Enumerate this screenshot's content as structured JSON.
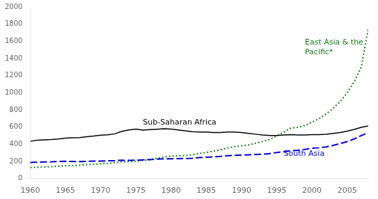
{
  "chart_data": {
    "type": "line",
    "x": [
      1960,
      1961,
      1962,
      1963,
      1964,
      1965,
      1966,
      1967,
      1968,
      1969,
      1970,
      1971,
      1972,
      1973,
      1974,
      1975,
      1976,
      1977,
      1978,
      1979,
      1980,
      1981,
      1982,
      1983,
      1984,
      1985,
      1986,
      1987,
      1988,
      1989,
      1990,
      1991,
      1992,
      1993,
      1994,
      1995,
      1996,
      1997,
      1998,
      1999,
      2000,
      2001,
      2002,
      2003,
      2004,
      2005,
      2006,
      2007,
      2008
    ],
    "series": [
      {
        "color": "#000000",
        "line_style": "solid",
        "values": [
          435,
          448,
          452,
          456,
          462,
          472,
          476,
          479,
          489,
          497,
          507,
          511,
          522,
          552,
          567,
          577,
          566,
          571,
          576,
          581,
          577,
          568,
          558,
          548,
          543,
          543,
          538,
          538,
          543,
          543,
          538,
          528,
          518,
          508,
          503,
          503,
          508,
          513,
          508,
          508,
          513,
          513,
          518,
          528,
          538,
          553,
          573,
          598,
          615
        ]
      },
      {
        "color": "#0000cc",
        "line_style": "dashed",
        "values": [
          188,
          192,
          194,
          196,
          200,
          202,
          200,
          198,
          202,
          205,
          205,
          208,
          210,
          215,
          213,
          215,
          220,
          222,
          228,
          232,
          232,
          234,
          236,
          238,
          245,
          250,
          255,
          260,
          268,
          272,
          275,
          278,
          282,
          285,
          292,
          305,
          315,
          325,
          330,
          340,
          355,
          360,
          370,
          388,
          408,
          432,
          462,
          502,
          535
        ]
      },
      {
        "color": "#1a7a1a",
        "line_style": "dotted",
        "values": [
          130,
          133,
          136,
          140,
          146,
          151,
          153,
          156,
          163,
          168,
          173,
          178,
          186,
          196,
          198,
          203,
          213,
          223,
          238,
          253,
          263,
          266,
          270,
          278,
          293,
          306,
          320,
          336,
          358,
          373,
          383,
          393,
          413,
          433,
          458,
          498,
          543,
          588,
          598,
          618,
          658,
          698,
          753,
          818,
          898,
          998,
          1128,
          1298,
          1750
        ]
      }
    ],
    "annotations": [
      {
        "text": "Sub-Saharan Africa",
        "x": 1976,
        "y": 650,
        "color": "#000000"
      },
      {
        "text": "South Asia",
        "x": 1996,
        "y": 290,
        "color": "#0000cc"
      },
      {
        "text": "East Asia & the\nPacific*",
        "x": 1999,
        "y": 1530,
        "color": "#1a7a1a"
      }
    ],
    "xlim": [
      1960,
      2008
    ],
    "xticks": [
      1960,
      1965,
      1970,
      1975,
      1980,
      1985,
      1990,
      1995,
      2000,
      2005
    ],
    "ylim": [
      0,
      2000
    ],
    "yticks": [
      0,
      200,
      400,
      600,
      800,
      1000,
      1200,
      1400,
      1600,
      1800,
      2000
    ],
    "grid": false
  }
}
